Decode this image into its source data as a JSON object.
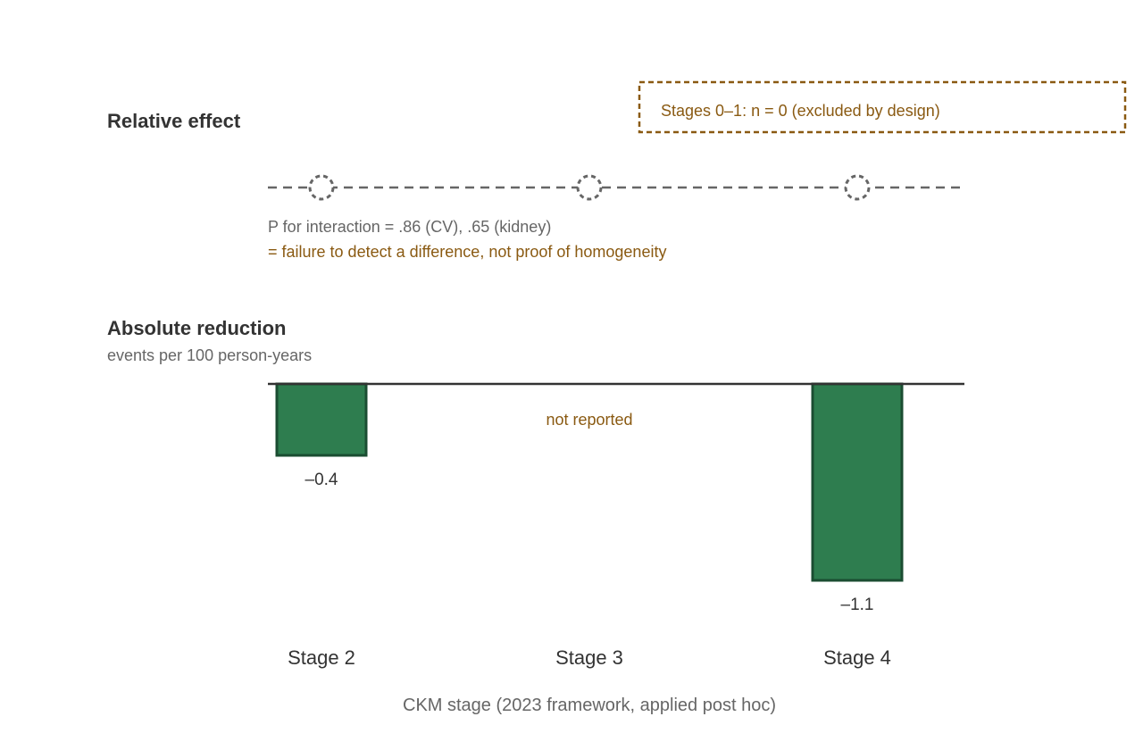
{
  "chart_data": {
    "type": "bar",
    "categories": [
      "Stage 2",
      "Stage 3",
      "Stage 4"
    ],
    "xlabel": "CKM stage (2023 framework, applied post hoc)",
    "relative_effect": {
      "title": "Relative effect",
      "interaction_note": "P for interaction = .86 (CV), .65 (kidney)",
      "caveat": "= failure to detect a difference, not proof of homogeneity"
    },
    "absolute_reduction": {
      "title": "Absolute reduction",
      "ylabel": "events per 100 person-years",
      "values": [
        -0.4,
        null,
        -1.1
      ],
      "value_labels": [
        "–0.4",
        "",
        "–1.1"
      ],
      "missing_label": "not reported",
      "ylim": [
        -1.1,
        0
      ]
    },
    "annotation": "Stages 0–1: n = 0 (excluded by design)",
    "colors": {
      "bar_fill": "#2e7d4f",
      "bar_stroke": "#1b4d32",
      "accent": "#8a5a12",
      "muted": "#666666",
      "text": "#333333",
      "marker": "#666666"
    }
  }
}
